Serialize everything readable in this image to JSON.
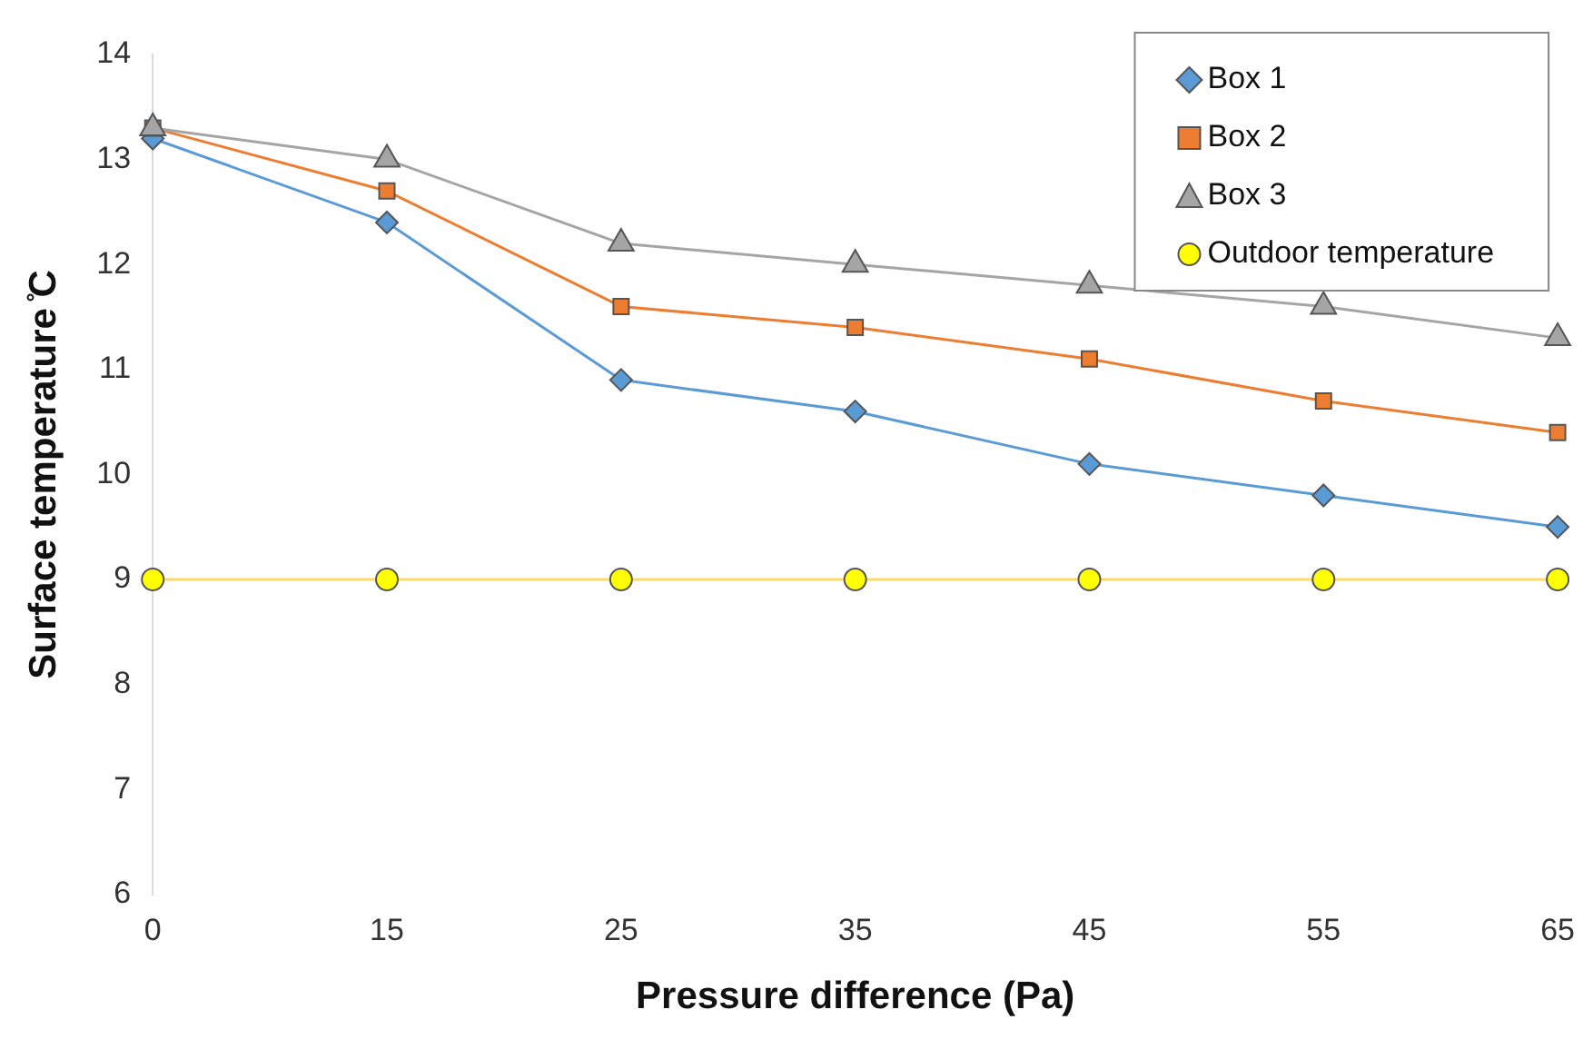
{
  "chart_data": {
    "type": "line",
    "xlabel": "Pressure difference (Pa)",
    "ylabel": "Surface temperature ̊C",
    "categories": [
      "0",
      "15",
      "25",
      "35",
      "45",
      "55",
      "65"
    ],
    "ylim": [
      6,
      14
    ],
    "yticks": [
      6,
      7,
      8,
      9,
      10,
      11,
      12,
      13,
      14
    ],
    "grid": false,
    "legend": "top right",
    "series": [
      {
        "name": "Box 1",
        "color": "#5b9bd5",
        "marker": "diamond",
        "values": [
          13.2,
          12.4,
          10.9,
          10.6,
          10.1,
          9.8,
          9.5
        ]
      },
      {
        "name": "Box 2",
        "color": "#ed7d31",
        "marker": "square",
        "values": [
          13.3,
          12.7,
          11.6,
          11.4,
          11.1,
          10.7,
          10.4
        ]
      },
      {
        "name": "Box 3",
        "color": "#a5a5a5",
        "marker": "triangle",
        "values": [
          13.3,
          13.0,
          12.2,
          12.0,
          11.8,
          11.6,
          11.3
        ]
      },
      {
        "name": "Outdoor temperature",
        "color": "#ffd966",
        "marker": "circle",
        "values": [
          9,
          9,
          9,
          9,
          9,
          9,
          9
        ]
      }
    ]
  }
}
